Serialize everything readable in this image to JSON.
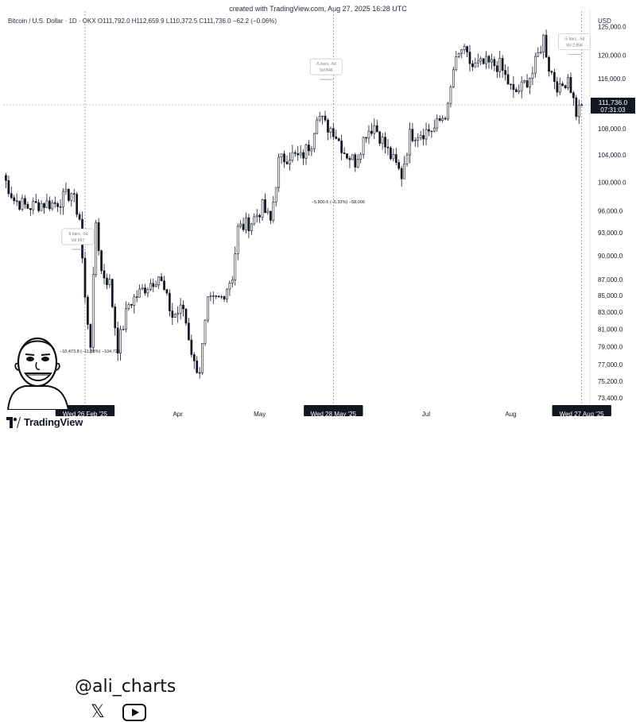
{
  "header": {
    "caption": "created with TradingView.com, Aug 27, 2025 16:28 UTC",
    "symbol_line": "Bitcoin / U.S. Dollar · 1D · OKX  O111,792.0  H112,659.9  L110,372.5  C111,736.0  −62.2 (−0.06%)",
    "currency": "USD"
  },
  "footer": {
    "brand": "TradingView"
  },
  "watermark": {
    "handle": "@ali_charts",
    "icons": [
      "x-icon",
      "youtube-icon"
    ]
  },
  "colors": {
    "up": "#131722",
    "down": "#131722",
    "up_fill": "#ffffff",
    "grid": "#e0e3eb",
    "price_line": "#9598a1"
  },
  "chart_data": {
    "type": "candlestick",
    "y_scale": "log",
    "ylim": [
      72500,
      127500
    ],
    "y_ticks": [
      {
        "value": 125000,
        "label": "125,000.0"
      },
      {
        "value": 120000,
        "label": "120,000.0"
      },
      {
        "value": 116000,
        "label": "116,000.0"
      },
      {
        "value": 108000,
        "label": "108,000.0"
      },
      {
        "value": 104000,
        "label": "104,000.0"
      },
      {
        "value": 100000,
        "label": "100,000.0"
      },
      {
        "value": 96000,
        "label": "96,000.0"
      },
      {
        "value": 93000,
        "label": "93,000.0"
      },
      {
        "value": 90000,
        "label": "90,000.0"
      },
      {
        "value": 87000,
        "label": "87,000.0"
      },
      {
        "value": 85000,
        "label": "85,000.0"
      },
      {
        "value": 83000,
        "label": "83,000.0"
      },
      {
        "value": 81000,
        "label": "81,000.0"
      },
      {
        "value": 79000,
        "label": "79,000.0"
      },
      {
        "value": 77000,
        "label": "77,000.0"
      },
      {
        "value": 75200,
        "label": "75,200.0"
      },
      {
        "value": 73400,
        "label": "73,400.0"
      }
    ],
    "x_range": [
      "2025-01-27",
      "2025-08-30"
    ],
    "x_ticks": [
      {
        "date": "2025-02-26",
        "label": "Wed 26 Feb '25",
        "highlight": true
      },
      {
        "date": "2025-04-01",
        "label": "Apr",
        "highlight": false
      },
      {
        "date": "2025-05-01",
        "label": "May",
        "highlight": false
      },
      {
        "date": "2025-05-28",
        "label": "Wed 28 May '25",
        "highlight": true
      },
      {
        "date": "2025-07-01",
        "label": "Jul",
        "highlight": false
      },
      {
        "date": "2025-08-01",
        "label": "Aug",
        "highlight": false
      },
      {
        "date": "2025-08-27",
        "label": "Wed 27 Aug '25",
        "highlight": true
      }
    ],
    "last_price": {
      "value": 111736.0,
      "label": "111,736.0",
      "countdown": "07:31:03"
    },
    "annotations": [
      {
        "date": "2025-02-26",
        "box": [
          "-5 bars, -5d",
          "Vol 667"
        ],
        "measure": "−10,473.8 (−11.83%) −104,725"
      },
      {
        "date": "2025-05-28",
        "box": [
          "-5 bars, -5d",
          "Vol 846"
        ],
        "measure": "−5,800.6 (−5.33%) −58,006"
      },
      {
        "date": "2025-08-27",
        "box": [
          "-5 bars, -5d",
          "Vol 2.85K"
        ],
        "measure": ""
      }
    ],
    "anchors": [
      {
        "date": "2025-01-27",
        "price": 101000
      },
      {
        "date": "2025-01-31",
        "price": 97500
      },
      {
        "date": "2025-02-05",
        "price": 96500
      },
      {
        "date": "2025-02-10",
        "price": 97000
      },
      {
        "date": "2025-02-15",
        "price": 97000
      },
      {
        "date": "2025-02-21",
        "price": 98500
      },
      {
        "date": "2025-02-24",
        "price": 95000
      },
      {
        "date": "2025-02-26",
        "price": 84500
      },
      {
        "date": "2025-02-28",
        "price": 79500
      },
      {
        "date": "2025-03-02",
        "price": 94500
      },
      {
        "date": "2025-03-04",
        "price": 88000
      },
      {
        "date": "2025-03-07",
        "price": 86500
      },
      {
        "date": "2025-03-10",
        "price": 79000
      },
      {
        "date": "2025-03-14",
        "price": 84000
      },
      {
        "date": "2025-03-20",
        "price": 86000
      },
      {
        "date": "2025-03-25",
        "price": 87500
      },
      {
        "date": "2025-03-30",
        "price": 82500
      },
      {
        "date": "2025-04-03",
        "price": 83500
      },
      {
        "date": "2025-04-07",
        "price": 77000
      },
      {
        "date": "2025-04-09",
        "price": 76500
      },
      {
        "date": "2025-04-12",
        "price": 84000
      },
      {
        "date": "2025-04-17",
        "price": 84800
      },
      {
        "date": "2025-04-21",
        "price": 87500
      },
      {
        "date": "2025-04-23",
        "price": 93500
      },
      {
        "date": "2025-04-28",
        "price": 94500
      },
      {
        "date": "2025-05-02",
        "price": 96500
      },
      {
        "date": "2025-05-05",
        "price": 94500
      },
      {
        "date": "2025-05-08",
        "price": 103000
      },
      {
        "date": "2025-05-12",
        "price": 104000
      },
      {
        "date": "2025-05-16",
        "price": 103500
      },
      {
        "date": "2025-05-20",
        "price": 106000
      },
      {
        "date": "2025-05-22",
        "price": 110500
      },
      {
        "date": "2025-05-25",
        "price": 108500
      },
      {
        "date": "2025-05-28",
        "price": 107800
      },
      {
        "date": "2025-06-01",
        "price": 104500
      },
      {
        "date": "2025-06-05",
        "price": 103000
      },
      {
        "date": "2025-06-09",
        "price": 107500
      },
      {
        "date": "2025-06-12",
        "price": 108500
      },
      {
        "date": "2025-06-17",
        "price": 104500
      },
      {
        "date": "2025-06-22",
        "price": 101000
      },
      {
        "date": "2025-06-25",
        "price": 107000
      },
      {
        "date": "2025-06-30",
        "price": 107500
      },
      {
        "date": "2025-07-04",
        "price": 108000
      },
      {
        "date": "2025-07-09",
        "price": 111000
      },
      {
        "date": "2025-07-11",
        "price": 117500
      },
      {
        "date": "2025-07-14",
        "price": 121000
      },
      {
        "date": "2025-07-18",
        "price": 118000
      },
      {
        "date": "2025-07-23",
        "price": 118500
      },
      {
        "date": "2025-07-28",
        "price": 118200
      },
      {
        "date": "2025-08-02",
        "price": 113500
      },
      {
        "date": "2025-08-05",
        "price": 114500
      },
      {
        "date": "2025-08-09",
        "price": 117000
      },
      {
        "date": "2025-08-13",
        "price": 123000
      },
      {
        "date": "2025-08-15",
        "price": 118000
      },
      {
        "date": "2025-08-19",
        "price": 114000
      },
      {
        "date": "2025-08-22",
        "price": 116500
      },
      {
        "date": "2025-08-25",
        "price": 110500
      },
      {
        "date": "2025-08-27",
        "price": 111736
      }
    ]
  }
}
